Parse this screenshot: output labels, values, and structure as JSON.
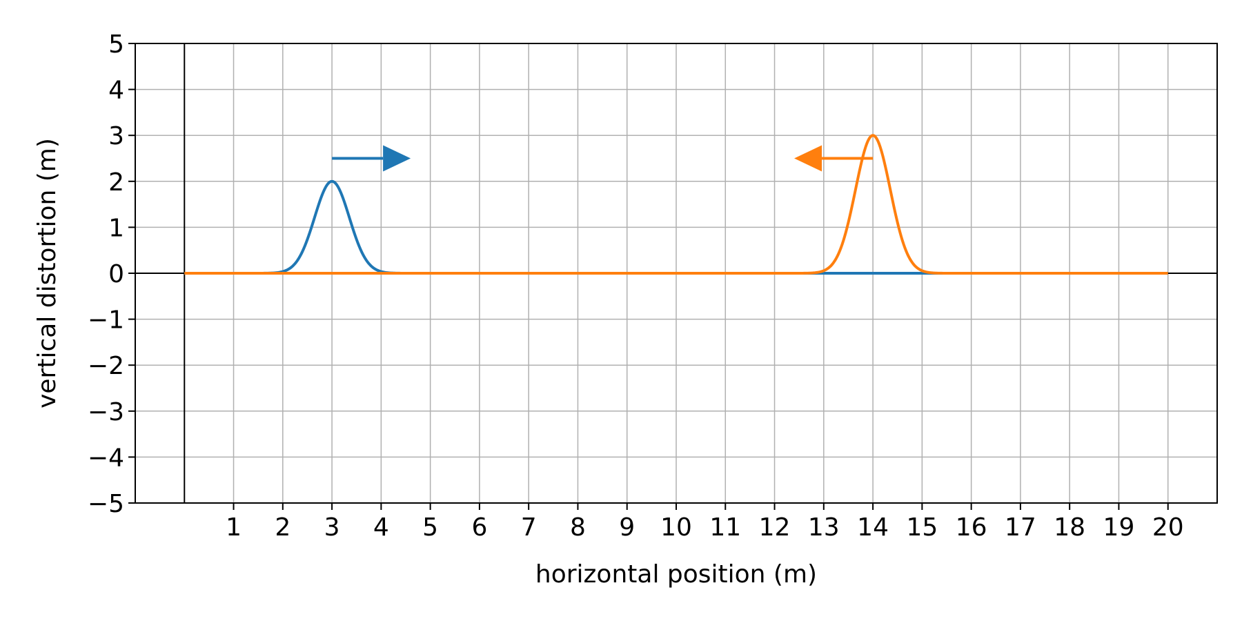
{
  "chart_data": {
    "type": "line",
    "title": "",
    "xlabel": "horizontal position (m)",
    "ylabel": "vertical distortion (m)",
    "xlim": [
      -1,
      21
    ],
    "ylim": [
      -5,
      5
    ],
    "xticks": [
      1,
      2,
      3,
      4,
      5,
      6,
      7,
      8,
      9,
      10,
      11,
      12,
      13,
      14,
      15,
      16,
      17,
      18,
      19,
      20
    ],
    "yticks": [
      -5,
      -4,
      -3,
      -2,
      -1,
      0,
      1,
      2,
      3,
      4,
      5
    ],
    "grid": true,
    "legend": "none",
    "series": [
      {
        "color": "#1f77b4",
        "x_range": [
          0,
          20
        ],
        "pulse": {
          "center": 3,
          "amplitude": 2,
          "width": 0.5
        },
        "direction": "right",
        "arrow": {
          "from": [
            3,
            2.5
          ],
          "to": [
            4.6,
            2.5
          ]
        }
      },
      {
        "color": "#ff7f0e",
        "x_range": [
          0,
          20
        ],
        "pulse": {
          "center": 14,
          "amplitude": 3,
          "width": 0.5
        },
        "direction": "left",
        "arrow": {
          "from": [
            14,
            2.5
          ],
          "to": [
            12.4,
            2.5
          ]
        }
      }
    ]
  }
}
